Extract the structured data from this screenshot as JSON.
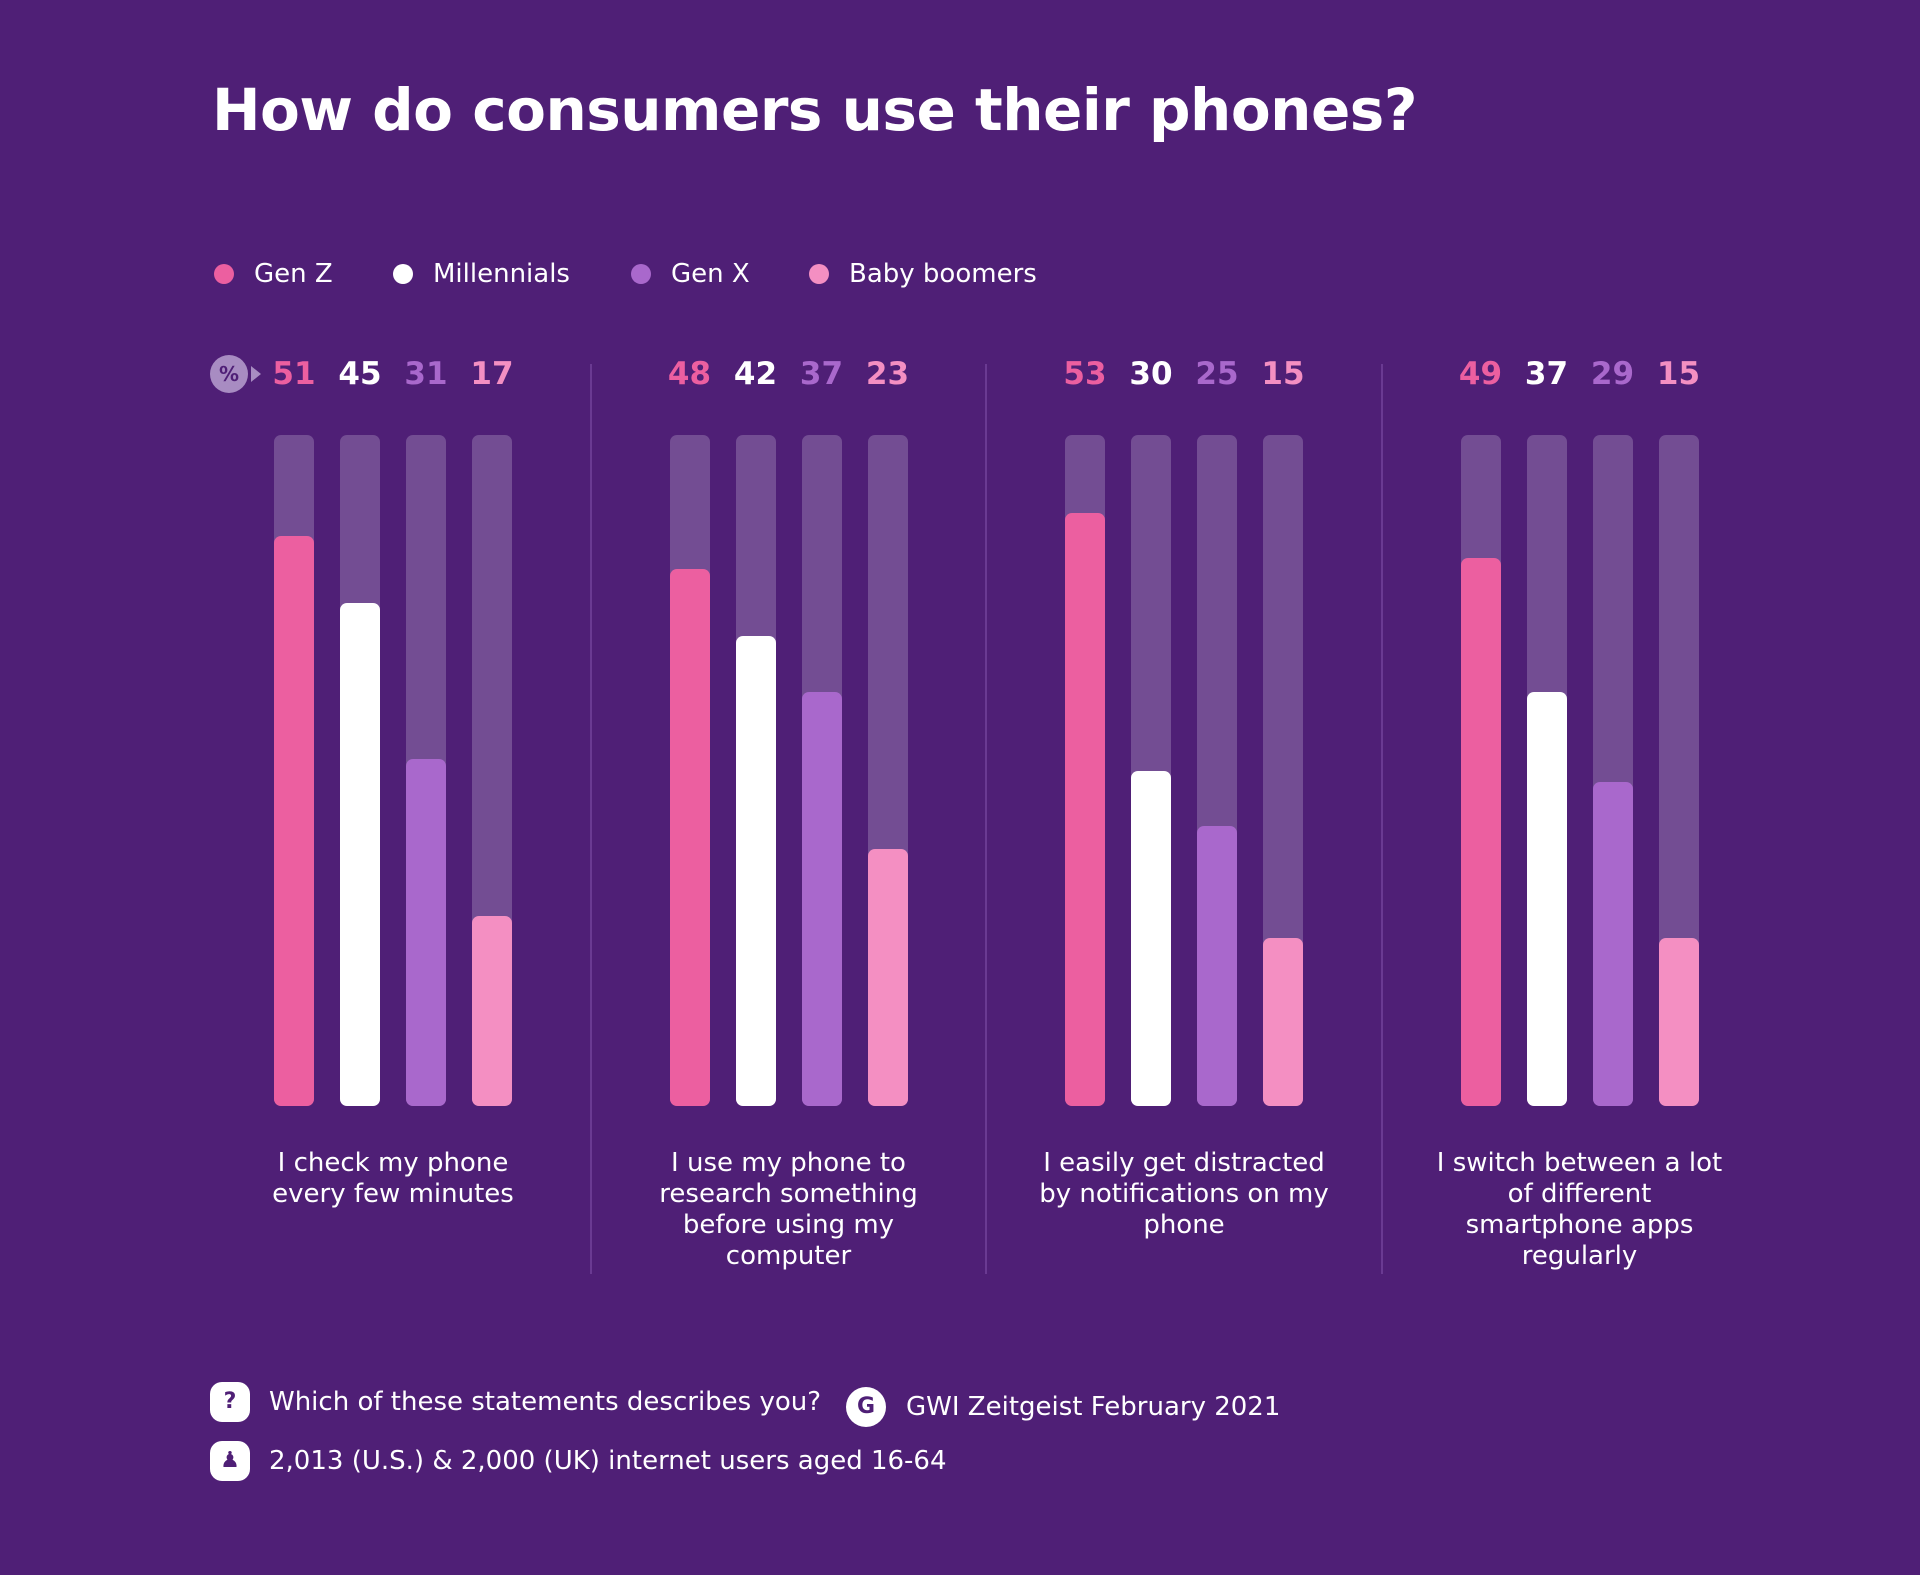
{
  "chart_data": {
    "type": "bar",
    "title": "How do consumers use their phones?",
    "unit": "%",
    "categories": [
      "I check my phone every few minutes",
      "I use my phone to research something before using my computer",
      "I easily get distracted by notifications on my phone",
      "I switch between a lot of different smartphone apps regularly"
    ],
    "series": [
      {
        "name": "Gen Z",
        "color": "#ec5fa0",
        "values": [
          51,
          48,
          53,
          49
        ]
      },
      {
        "name": "Millennials",
        "color": "#ffffff",
        "values": [
          45,
          42,
          30,
          37
        ]
      },
      {
        "name": "Gen X",
        "color": "#a968cc",
        "values": [
          31,
          37,
          25,
          29
        ]
      },
      {
        "name": "Baby boomers",
        "color": "#f48fc2",
        "values": [
          17,
          23,
          15,
          15
        ]
      }
    ],
    "ylim": [
      0,
      60
    ],
    "question": "Which of these statements describes you?",
    "source": "GWI Zeitgeist February 2021",
    "sample": "2,013 (U.S.) & 2,000 (UK) internet users aged 16-64"
  }
}
